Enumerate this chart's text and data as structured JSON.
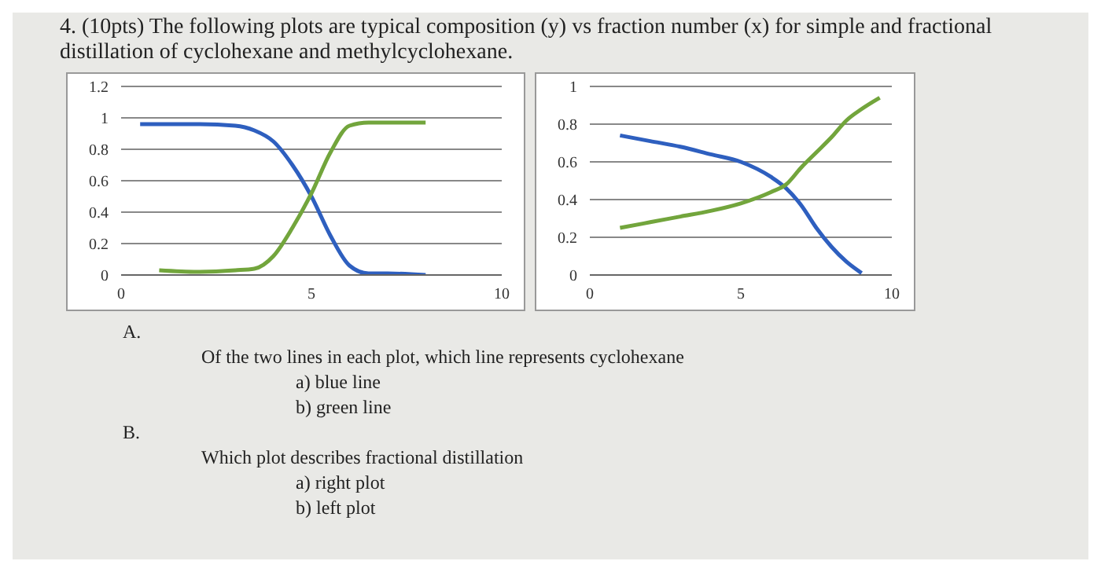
{
  "chart_data": [
    {
      "type": "line",
      "title": "4. (10pts)      The following plots are typical composition (y) vs fraction number (x) for simple and fractional distillation of cyclohexane and methylcyclohexane.",
      "xlim": [
        0,
        10
      ],
      "xticks": [
        0,
        5,
        10
      ],
      "ylim": [
        0,
        1.2
      ],
      "yticks": [
        0,
        0.2,
        0.4,
        0.6,
        0.8,
        1,
        1.2
      ],
      "grid": "y",
      "marker": "none",
      "line_style": "solid",
      "series": [
        {
          "color": "#2e5fbf",
          "x": [
            0.5,
            2,
            3,
            3.5,
            4,
            4.5,
            5,
            5.5,
            6,
            6.5,
            7,
            8
          ],
          "values": [
            0.96,
            0.96,
            0.95,
            0.92,
            0.85,
            0.7,
            0.5,
            0.25,
            0.06,
            0.01,
            0.01,
            0
          ]
        },
        {
          "color": "#72a53c",
          "x": [
            1,
            2,
            3,
            3.5,
            4,
            4.5,
            5,
            5.5,
            6,
            6.5,
            8
          ],
          "values": [
            0.03,
            0.02,
            0.03,
            0.04,
            0.12,
            0.3,
            0.52,
            0.78,
            0.95,
            0.97,
            0.97
          ]
        }
      ]
    },
    {
      "type": "line",
      "xlim": [
        0,
        10
      ],
      "xticks": [
        0,
        5,
        10
      ],
      "ylim": [
        0,
        1
      ],
      "yticks": [
        0,
        0.2,
        0.4,
        0.6,
        0.8,
        1
      ],
      "grid": "y",
      "marker": "none",
      "line_style": "solid",
      "series": [
        {
          "color": "#2e5fbf",
          "x": [
            1,
            2,
            3,
            4,
            5,
            6,
            6.5,
            7,
            7.5,
            8,
            8.5,
            9
          ],
          "values": [
            0.74,
            0.71,
            0.68,
            0.64,
            0.6,
            0.52,
            0.46,
            0.37,
            0.25,
            0.15,
            0.07,
            0.01
          ]
        },
        {
          "color": "#72a53c",
          "x": [
            1,
            2,
            3,
            4,
            5,
            6,
            6.5,
            7,
            7.5,
            8,
            8.5,
            9,
            9.6
          ],
          "values": [
            0.25,
            0.28,
            0.31,
            0.34,
            0.38,
            0.44,
            0.48,
            0.57,
            0.65,
            0.73,
            0.82,
            0.88,
            0.94
          ]
        }
      ],
      "annotations": [
        "A.",
        "Of the two lines in each plot, which line represents cyclohexane",
        "a)  blue line",
        "b)  green line",
        "B.",
        "Which plot describes fractional distillation",
        "a)  right plot",
        "b)  left plot"
      ]
    }
  ]
}
